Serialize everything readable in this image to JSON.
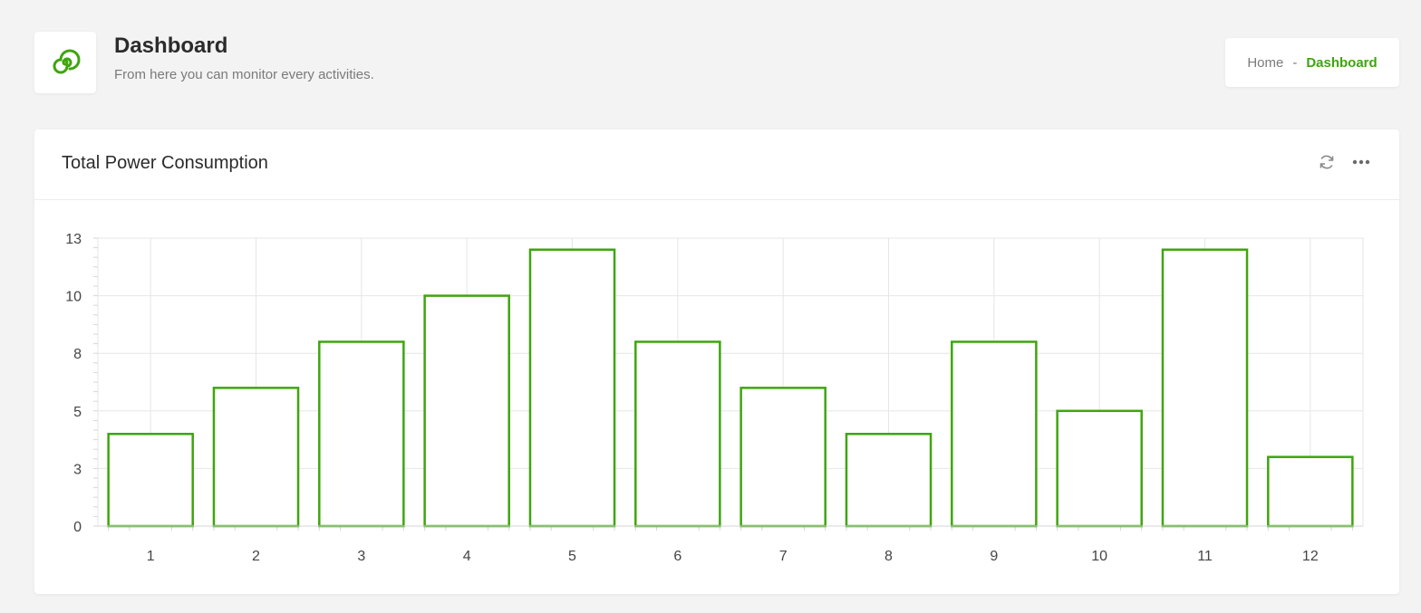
{
  "header": {
    "title": "Dashboard",
    "subtitle": "From here you can monitor every activities.",
    "logo_icon": "spiral-logo-icon"
  },
  "breadcrumb": {
    "home": "Home",
    "separator": "-",
    "current": "Dashboard"
  },
  "card": {
    "title": "Total Power Consumption",
    "tools": [
      "refresh-icon",
      "more-icon"
    ]
  },
  "colors": {
    "accent": "#3ea50e",
    "grid": "#e6e6e6",
    "background": "#f3f3f3"
  },
  "chart_data": {
    "type": "bar",
    "categories": [
      "1",
      "2",
      "3",
      "4",
      "5",
      "6",
      "7",
      "8",
      "9",
      "10",
      "11",
      "12"
    ],
    "values": [
      4,
      6,
      8,
      10,
      12,
      8,
      6,
      4,
      8,
      5,
      12,
      3
    ],
    "y_tick_labels": [
      "0",
      "3",
      "5",
      "8",
      "10",
      "13"
    ],
    "ylim": [
      0,
      12.5
    ],
    "grid": true,
    "bar_style": "outline"
  }
}
